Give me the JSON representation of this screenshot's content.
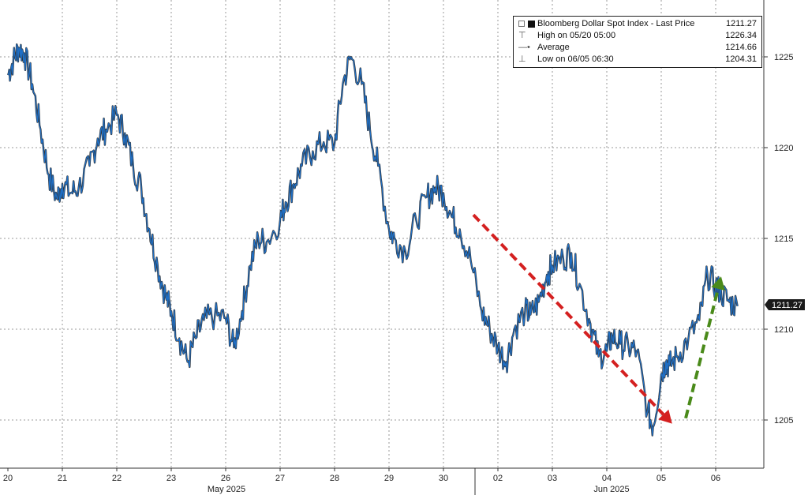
{
  "chart_data": {
    "type": "line",
    "title": "Bloomberg Dollar Spot Index",
    "x_tick_labels": [
      "20",
      "21",
      "22",
      "23",
      "26",
      "27",
      "28",
      "29",
      "30",
      "02",
      "03",
      "04",
      "05",
      "06"
    ],
    "month_labels": [
      "May 2025",
      "Jun 2025"
    ],
    "y_ticks": [
      1205,
      1210,
      1215,
      1220,
      1225
    ],
    "ylim": [
      1202.5,
      1227.6
    ],
    "grid": true,
    "last_price_tag": "1211.27",
    "series": [
      {
        "name": "Bloomberg Dollar Spot Index - Last Price",
        "color": "#1f6fc5",
        "x": [
          0.0,
          0.1,
          0.2,
          0.3,
          0.45,
          0.6,
          0.75,
          0.9,
          1.0,
          1.15,
          1.3,
          1.5,
          1.65,
          1.8,
          2.0,
          2.15,
          2.3,
          2.45,
          2.6,
          2.75,
          2.9,
          3.0,
          3.15,
          3.3,
          3.45,
          3.6,
          3.8,
          4.0,
          4.15,
          4.3,
          4.45,
          4.6,
          4.75,
          5.0,
          5.1,
          5.25,
          5.4,
          5.6,
          5.8,
          6.0,
          6.15,
          6.3,
          6.5,
          6.65,
          6.8,
          7.0,
          7.1,
          7.3,
          7.5,
          7.7,
          7.85,
          8.0,
          8.15,
          8.3,
          8.5,
          8.7,
          8.85,
          9.0,
          9.15,
          9.3,
          9.5,
          9.6,
          9.75,
          9.9,
          10.0,
          10.2,
          10.35,
          10.5,
          10.7,
          10.85,
          11.0,
          11.1,
          11.25,
          11.4,
          11.55,
          11.75,
          11.85,
          12.0,
          12.08,
          12.15,
          12.3,
          12.5,
          12.7,
          12.85,
          13.0,
          13.1,
          13.25,
          13.4
        ],
        "values": [
          1224.0,
          1224.8,
          1225.5,
          1225.2,
          1223.5,
          1221.0,
          1218.5,
          1217.2,
          1218.0,
          1217.5,
          1217.8,
          1219.0,
          1220.5,
          1221.0,
          1221.8,
          1220.8,
          1219.0,
          1217.8,
          1215.5,
          1213.5,
          1211.8,
          1211.0,
          1209.5,
          1208.2,
          1209.5,
          1210.5,
          1210.7,
          1210.6,
          1209.0,
          1211.0,
          1213.5,
          1215.0,
          1214.8,
          1216.0,
          1217.0,
          1218.0,
          1219.0,
          1219.8,
          1220.3,
          1220.2,
          1223.5,
          1225.0,
          1223.5,
          1221.0,
          1219.0,
          1215.5,
          1215.0,
          1214.3,
          1216.0,
          1217.3,
          1217.8,
          1217.5,
          1216.2,
          1215.5,
          1213.8,
          1211.0,
          1210.0,
          1209.0,
          1208.2,
          1210.0,
          1211.0,
          1210.8,
          1211.5,
          1213.0,
          1213.5,
          1213.9,
          1214.2,
          1212.5,
          1210.3,
          1208.5,
          1208.8,
          1209.6,
          1209.2,
          1209.0,
          1208.8,
          1205.5,
          1204.6,
          1207.5,
          1208.2,
          1208.0,
          1208.5,
          1209.5,
          1210.5,
          1213.0,
          1212.4,
          1212.0,
          1211.5,
          1211.27
        ]
      }
    ],
    "legend": {
      "title": "Bloomberg Dollar Spot Index - Last Price",
      "title_value": "1211.27",
      "rows": [
        {
          "label": "High on 05/20 05:00",
          "value": "1226.34"
        },
        {
          "label": "Average",
          "value": "1214.66"
        },
        {
          "label": "Low on 06/05 06:30",
          "value": "1204.31"
        }
      ]
    },
    "annotations": [
      {
        "type": "arrow",
        "color": "#d42020",
        "from": {
          "x": 8.55,
          "y": 1216.3
        },
        "to": {
          "x": 12.2,
          "y": 1204.8
        }
      },
      {
        "type": "arrow",
        "color": "#4a8a1a",
        "from": {
          "x": 12.45,
          "y": 1205.1
        },
        "to": {
          "x": 13.1,
          "y": 1212.9
        }
      }
    ]
  }
}
